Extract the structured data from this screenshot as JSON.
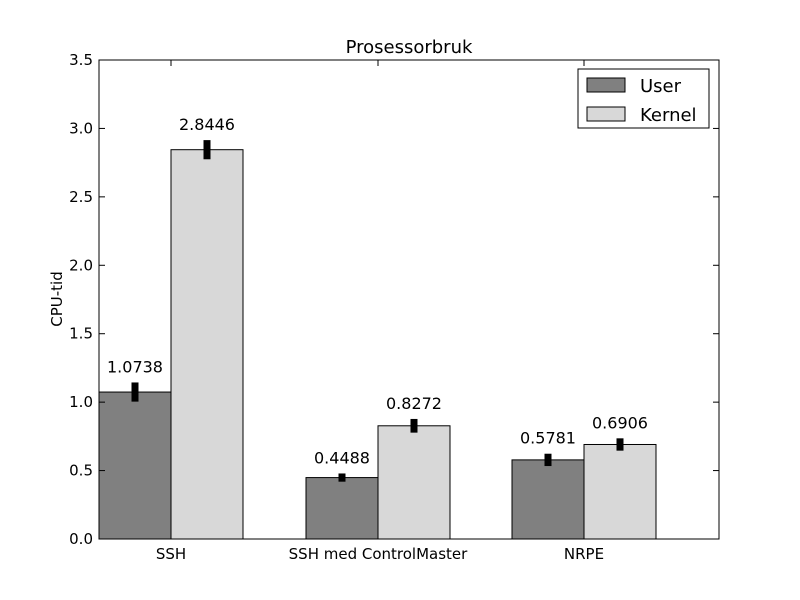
{
  "chart_data": {
    "type": "bar",
    "title": "Prosessorbruk",
    "xlabel": "",
    "ylabel": "CPU-tid",
    "categories": [
      "SSH",
      "SSH med ControlMaster",
      "NRPE"
    ],
    "series": [
      {
        "name": "User",
        "color": "#808080",
        "values": [
          1.0738,
          0.4488,
          0.5781
        ],
        "labels": [
          "1.0738",
          "0.4488",
          "0.5781"
        ],
        "errors": [
          0.07,
          0.03,
          0.045
        ]
      },
      {
        "name": "Kernel",
        "color": "#d8d8d8",
        "values": [
          2.8446,
          0.8272,
          0.6906
        ],
        "labels": [
          "2.8446",
          "0.8272",
          "0.6906"
        ],
        "errors": [
          0.07,
          0.05,
          0.045
        ]
      }
    ],
    "ylim": [
      0,
      3.5
    ],
    "yticks": [
      "0.0",
      "0.5",
      "1.0",
      "1.5",
      "2.0",
      "2.5",
      "3.0",
      "3.5"
    ],
    "grid": false,
    "legend_position": "top-right"
  }
}
